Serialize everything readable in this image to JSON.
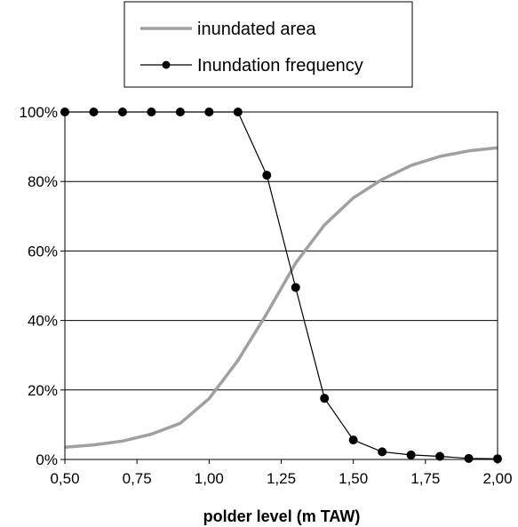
{
  "chart_data": {
    "type": "line",
    "title": "",
    "xlabel": "polder level (m TAW)",
    "ylabel": "",
    "x": [
      0.5,
      0.6,
      0.7,
      0.8,
      0.9,
      1.0,
      1.1,
      1.2,
      1.3,
      1.4,
      1.5,
      1.6,
      1.7,
      1.8,
      1.9,
      2.0
    ],
    "xlim": [
      0.5,
      2.0
    ],
    "ylim": [
      0,
      100
    ],
    "x_tick_labels": [
      "0,50",
      "0,75",
      "1,00",
      "1,25",
      "1,50",
      "1,75",
      "2,00"
    ],
    "y_tick_labels": [
      "0%",
      "20%",
      "40%",
      "60%",
      "80%",
      "100%"
    ],
    "grid": "horizontal",
    "legend_position": "top-center",
    "series": [
      {
        "name": "inundated area",
        "color": "#a0a0a0",
        "marker": "none",
        "values": [
          3.5,
          4.2,
          5.3,
          7.3,
          10.4,
          17.5,
          28.5,
          42.0,
          56.5,
          67.5,
          75.3,
          80.6,
          84.6,
          87.2,
          88.8,
          89.7
        ]
      },
      {
        "name": "Inundation frequency",
        "color": "#000000",
        "marker": "circle",
        "values": [
          100,
          100,
          100,
          100,
          100,
          100,
          100,
          81.8,
          49.5,
          17.6,
          5.6,
          2.2,
          1.3,
          0.9,
          0.3,
          0.2
        ]
      }
    ]
  }
}
